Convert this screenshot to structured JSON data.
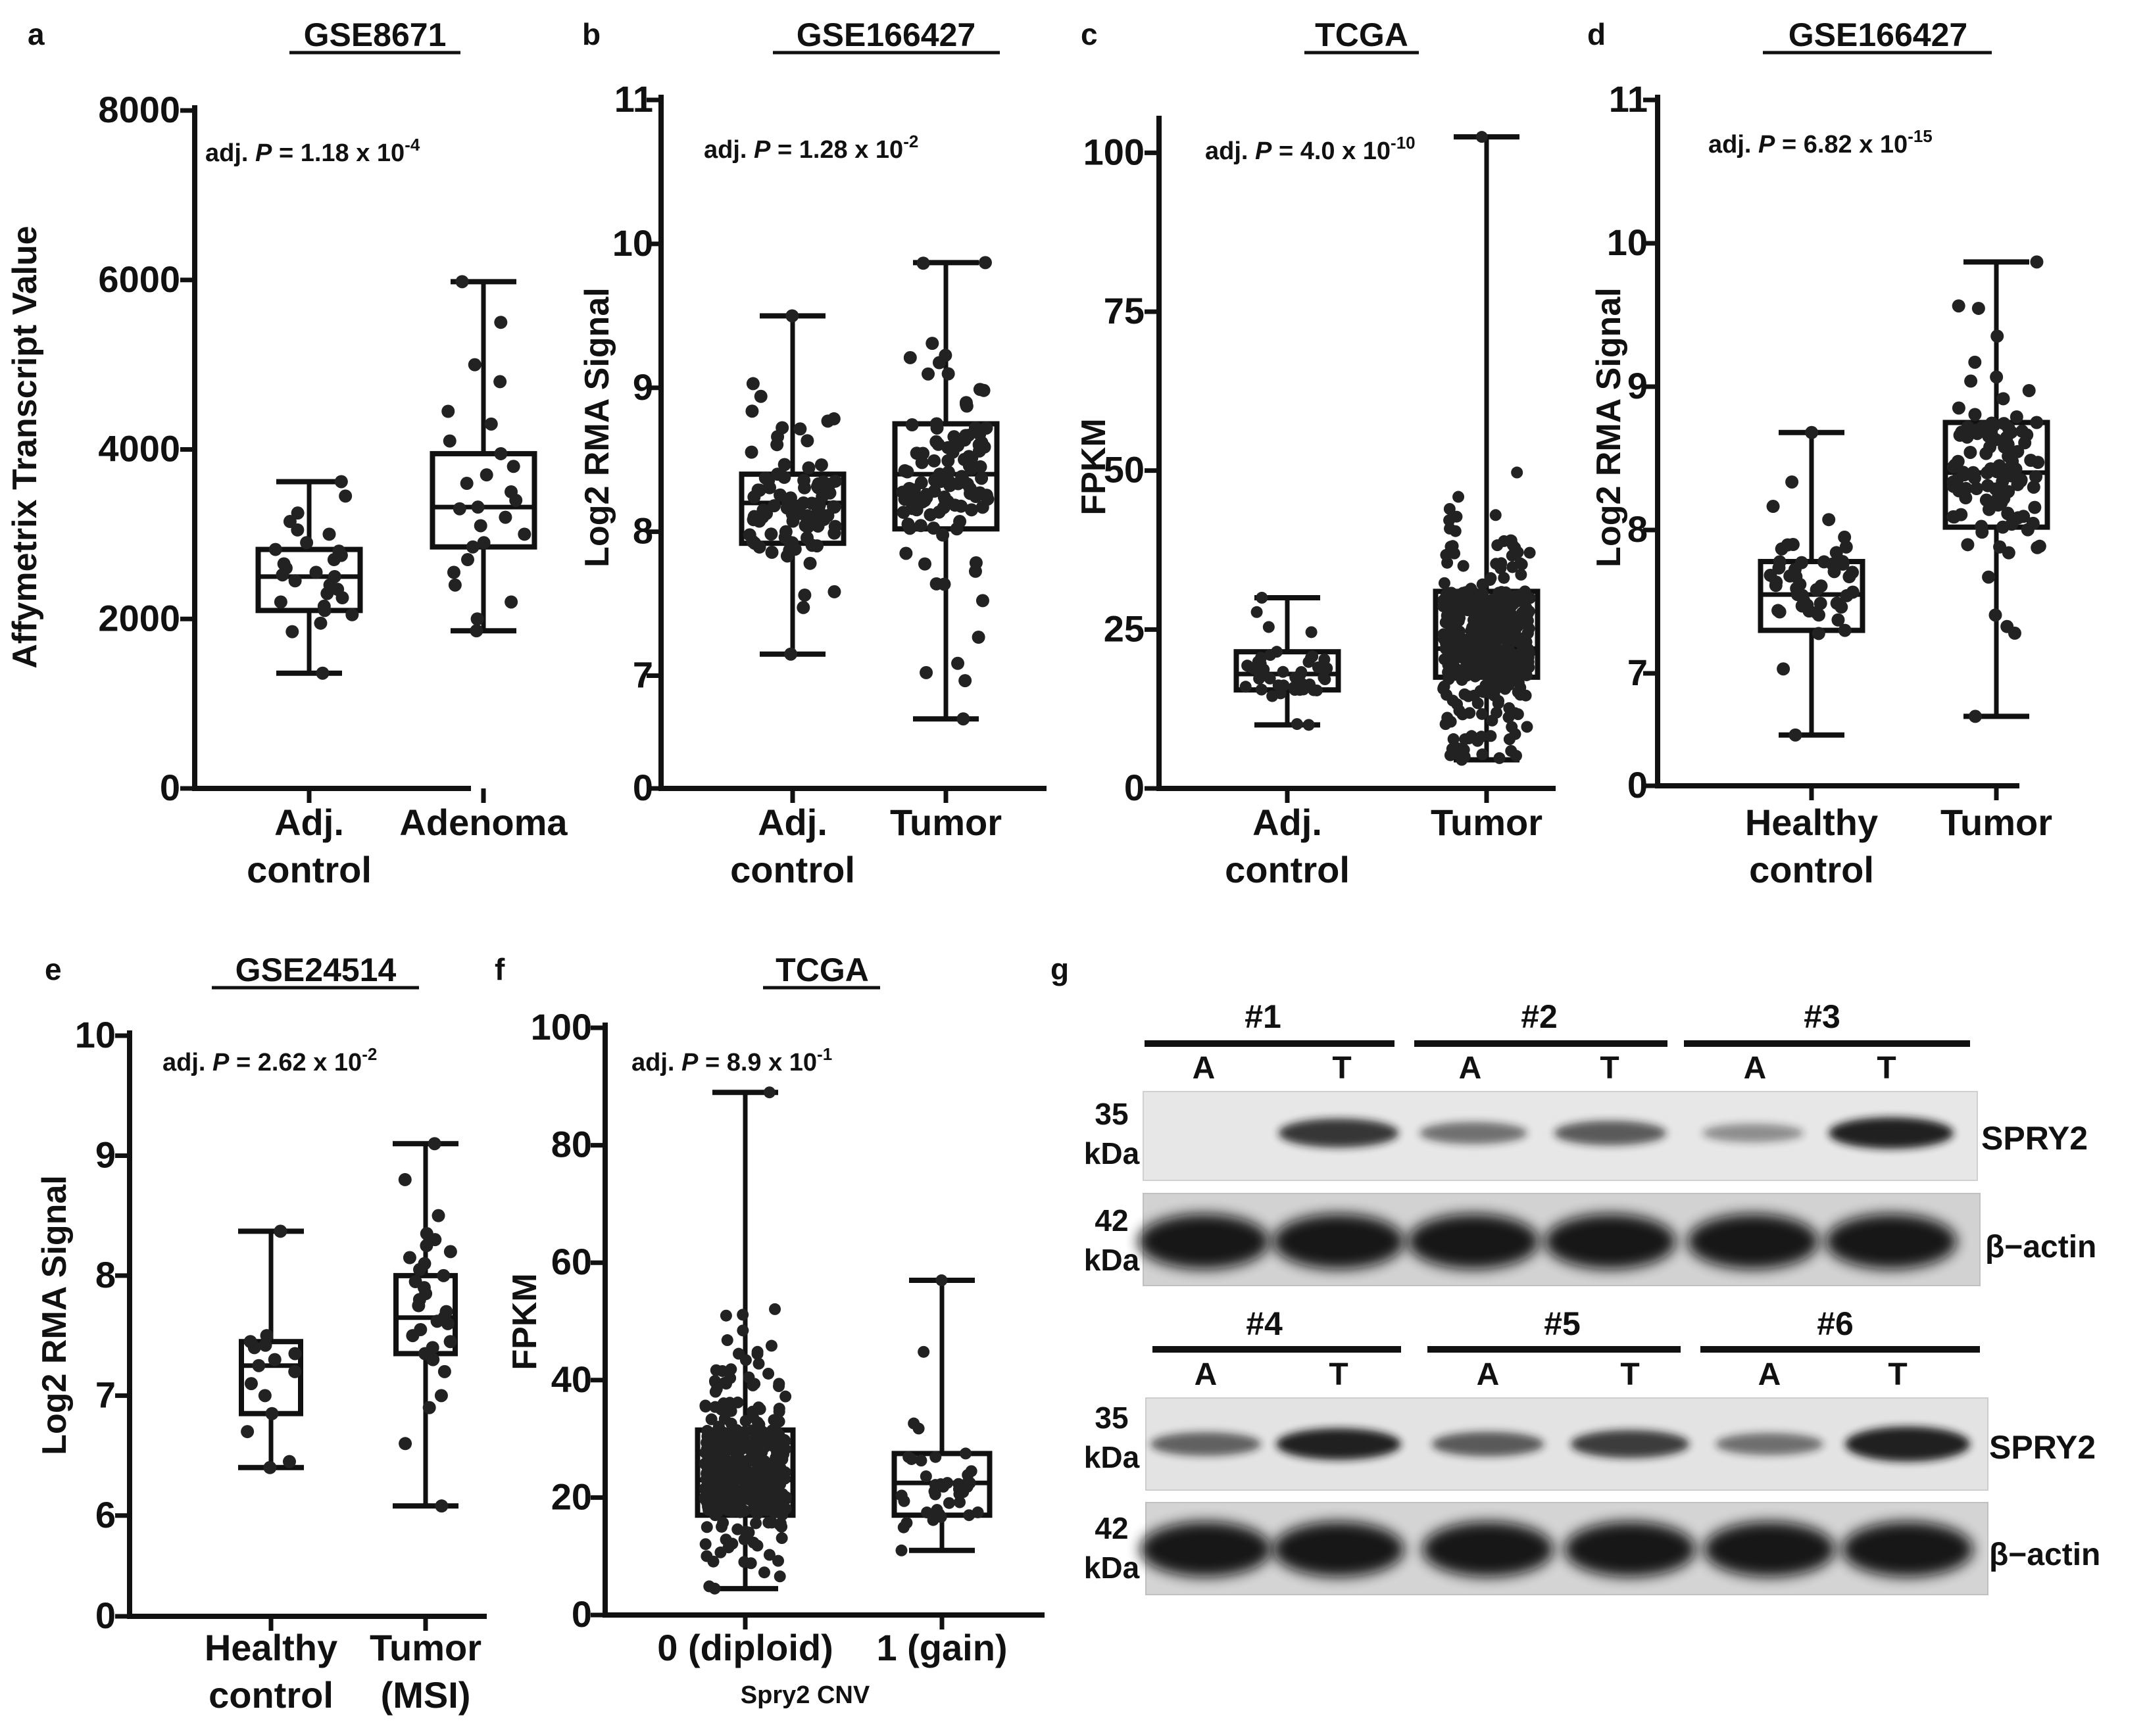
{
  "chart_data": [
    {
      "panel": "a",
      "type": "box",
      "title": "GSE8671",
      "ylabel": "Affymetrix Transcript Value",
      "ylim": [
        0,
        8000
      ],
      "yticks": [
        0,
        2000,
        4000,
        6000,
        8000
      ],
      "annotation": {
        "prefix": "adj. ",
        "p": "P",
        "eq": " = 1.18 x 10",
        "exp": "-4"
      },
      "groups": [
        {
          "label": [
            "Adj.",
            "control"
          ],
          "min": 1360,
          "q1": 2100,
          "median": 2500,
          "q3": 2820,
          "max": 3620,
          "points": [
            1360,
            1850,
            1950,
            2050,
            2100,
            2150,
            2200,
            2250,
            2300,
            2350,
            2400,
            2450,
            2500,
            2520,
            2550,
            2600,
            2650,
            2700,
            2750,
            2800,
            2820,
            2900,
            3000,
            3050,
            3150,
            3250,
            3450,
            3620
          ]
        },
        {
          "label": [
            "Adenoma"
          ],
          "min": 1860,
          "q1": 2850,
          "median": 3320,
          "q3": 3950,
          "max": 5980,
          "points": [
            1860,
            2000,
            2200,
            2400,
            2550,
            2700,
            2850,
            2900,
            3000,
            3100,
            3200,
            3300,
            3320,
            3400,
            3500,
            3600,
            3700,
            3800,
            3950,
            4100,
            4300,
            4450,
            4800,
            5000,
            5500,
            5980
          ]
        }
      ]
    },
    {
      "panel": "b",
      "type": "box",
      "title": "GSE166427",
      "ylabel": "Log2 RMA Signal",
      "ylim": [
        0,
        11
      ],
      "ybreak": 6.5,
      "yticks": [
        0,
        7,
        8,
        9,
        10,
        11
      ],
      "annotation": {
        "prefix": "adj. ",
        "p": "P",
        "eq": " = 1.28 x 10",
        "exp": "-2"
      },
      "groups": [
        {
          "label": [
            "Adj.",
            "control"
          ],
          "min": 7.15,
          "q1": 7.92,
          "median": 8.2,
          "q3": 8.4,
          "max": 9.5,
          "n": 90
        },
        {
          "label": [
            "Tumor"
          ],
          "min": 6.7,
          "q1": 8.02,
          "median": 8.4,
          "q3": 8.75,
          "max": 9.87,
          "n": 110
        }
      ]
    },
    {
      "panel": "c",
      "type": "box",
      "title": "TCGA",
      "ylabel": "FPKM",
      "ylim": [
        0,
        105
      ],
      "yticks": [
        0,
        25,
        50,
        75,
        100
      ],
      "annotation": {
        "prefix": "adj. ",
        "p": "P",
        "eq": " = 4.0 x 10",
        "exp": "-10"
      },
      "groups": [
        {
          "label": [
            "Adj.",
            "control"
          ],
          "min": 10,
          "q1": 15.5,
          "median": 18,
          "q3": 21.5,
          "max": 30,
          "n": 45
        },
        {
          "label": [
            "Tumor"
          ],
          "min": 4.5,
          "q1": 17.5,
          "median": 22,
          "q3": 31,
          "max": 102.5,
          "n": 420
        }
      ]
    },
    {
      "panel": "d",
      "type": "box",
      "title": "GSE166427",
      "ylabel": "Log2 RMA Signal",
      "ylim": [
        0,
        11
      ],
      "ybreak": 6.5,
      "yticks": [
        0,
        7,
        8,
        9,
        10,
        11
      ],
      "annotation": {
        "prefix": "adj. ",
        "p": "P",
        "eq": " = 6.82 x 10",
        "exp": "-15"
      },
      "groups": [
        {
          "label": [
            "Healthy",
            "control"
          ],
          "min": 6.57,
          "q1": 7.3,
          "median": 7.55,
          "q3": 7.78,
          "max": 8.68,
          "n": 50
        },
        {
          "label": [
            "Tumor"
          ],
          "min": 6.7,
          "q1": 8.02,
          "median": 8.4,
          "q3": 8.75,
          "max": 9.87,
          "n": 110
        }
      ]
    },
    {
      "panel": "e",
      "type": "box",
      "title": "GSE24514",
      "ylabel": "Log2 RMA Signal",
      "ylim": [
        0,
        10
      ],
      "ybreak": 5.5,
      "yticks": [
        0,
        6,
        7,
        8,
        9,
        10
      ],
      "annotation": {
        "prefix": "adj. ",
        "p": "P",
        "eq": " = 2.62 x 10",
        "exp": "-2"
      },
      "groups": [
        {
          "label": [
            "Healthy",
            "control"
          ],
          "min": 6.4,
          "q1": 6.85,
          "median": 7.25,
          "q3": 7.45,
          "max": 8.37,
          "points": [
            6.4,
            6.45,
            6.7,
            6.85,
            7.0,
            7.1,
            7.2,
            7.25,
            7.3,
            7.35,
            7.4,
            7.42,
            7.45,
            7.5,
            8.37
          ]
        },
        {
          "label": [
            "Tumor",
            "(MSI)"
          ],
          "min": 6.08,
          "q1": 7.35,
          "median": 7.65,
          "q3": 8.0,
          "max": 9.1,
          "points": [
            6.08,
            6.6,
            6.9,
            7.0,
            7.2,
            7.3,
            7.35,
            7.4,
            7.45,
            7.5,
            7.55,
            7.6,
            7.62,
            7.65,
            7.7,
            7.75,
            7.8,
            7.85,
            7.9,
            7.95,
            8.0,
            8.05,
            8.1,
            8.15,
            8.2,
            8.25,
            8.3,
            8.35,
            8.5,
            8.8,
            9.1
          ]
        }
      ]
    },
    {
      "panel": "f",
      "type": "box",
      "title": "TCGA",
      "ylabel": "FPKM",
      "xlabel": "Spry2 CNV",
      "ylim": [
        0,
        100
      ],
      "yticks": [
        0,
        20,
        40,
        60,
        80,
        100
      ],
      "annotation": {
        "prefix": "adj. ",
        "p": "P",
        "eq": " = 8.9 x 10",
        "exp": "-1"
      },
      "groups": [
        {
          "label": [
            "0 (diploid)"
          ],
          "min": 4.5,
          "q1": 17,
          "median": 23,
          "q3": 31.5,
          "max": 89,
          "n": 380
        },
        {
          "label": [
            "1 (gain)"
          ],
          "min": 11,
          "q1": 17,
          "median": 22.5,
          "q3": 27.5,
          "max": 57,
          "n": 40
        }
      ]
    }
  ],
  "panel_letters": [
    "a",
    "b",
    "c",
    "d",
    "e",
    "f",
    "g"
  ],
  "western_blot": {
    "panel": "g",
    "top_samples": [
      "#1",
      "#2",
      "#3"
    ],
    "bottom_samples": [
      "#4",
      "#5",
      "#6"
    ],
    "lane_labels": [
      "A",
      "T",
      "A",
      "T",
      "A",
      "T",
      "A",
      "T",
      "A",
      "T",
      "A",
      "T"
    ],
    "mw_spry2": [
      "35",
      "kDa"
    ],
    "mw_actin": [
      "42",
      "kDa"
    ],
    "target_label": "SPRY2",
    "control_label": "β−actin",
    "spry2_top_intensity": [
      0.0,
      0.85,
      0.45,
      0.6,
      0.25,
      1.0
    ],
    "spry2_bottom_intensity": [
      0.55,
      1.0,
      0.6,
      0.8,
      0.45,
      1.2
    ]
  }
}
